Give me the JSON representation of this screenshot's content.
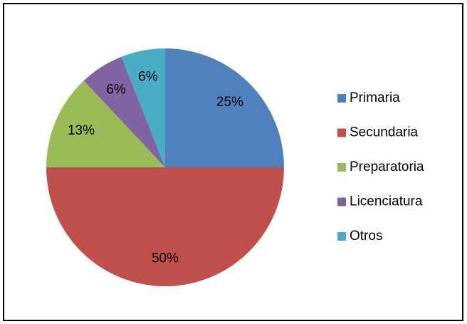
{
  "chart_data": {
    "type": "pie",
    "categories": [
      "Primaria",
      "Secundaria",
      "Preparatoria",
      "Licenciatura",
      "Otros"
    ],
    "values": [
      25,
      50,
      13,
      6,
      6
    ],
    "value_labels": [
      "25%",
      "50%",
      "13%",
      "6%",
      "6%"
    ],
    "colors": [
      "#4f81bd",
      "#c0504d",
      "#9bbb59",
      "#8064a2",
      "#4bacc6"
    ],
    "legend": "right"
  }
}
